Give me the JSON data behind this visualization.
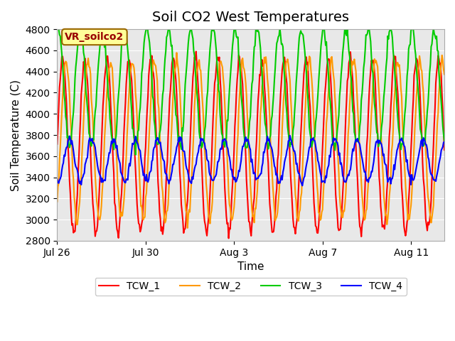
{
  "title": "Soil CO2 West Temperatures",
  "xlabel": "Time",
  "ylabel": "Soil Temperature (C)",
  "ylim": [
    2800,
    4800
  ],
  "yticks": [
    2800,
    3000,
    3200,
    3400,
    3600,
    3800,
    4000,
    4200,
    4400,
    4600,
    4800
  ],
  "xtick_labels": [
    "Jul 26",
    "Jul 30",
    "Aug 3",
    "Aug 7",
    "Aug 11"
  ],
  "xtick_positions": [
    0,
    4,
    8,
    12,
    16
  ],
  "series_colors": [
    "#ff0000",
    "#ff9900",
    "#00cc00",
    "#0000ff"
  ],
  "series_names": [
    "TCW_1",
    "TCW_2",
    "TCW_3",
    "TCW_4"
  ],
  "plot_bg_color": "#e8e8e8",
  "fig_bg_color": "#ffffff",
  "vr_label": "VR_soilco2",
  "vr_label_color": "#990000",
  "vr_box_color": "#ffff99",
  "n_points": 500,
  "time_days": 17.5,
  "tcw1_mean": 3700,
  "tcw1_amp": 820,
  "tcw1_period": 1.0,
  "tcw1_phase": 0.0,
  "tcw2_mean": 3750,
  "tcw2_amp": 750,
  "tcw2_period": 1.0,
  "tcw2_phase": 0.15,
  "tcw3_mean": 4250,
  "tcw3_amp": 550,
  "tcw3_period": 1.0,
  "tcw3_phase": -0.2,
  "tcw4_mean": 3560,
  "tcw4_amp": 200,
  "tcw4_period": 1.0,
  "tcw4_phase": 0.3,
  "title_fontsize": 14,
  "axis_label_fontsize": 11,
  "tick_fontsize": 10,
  "legend_fontsize": 10
}
